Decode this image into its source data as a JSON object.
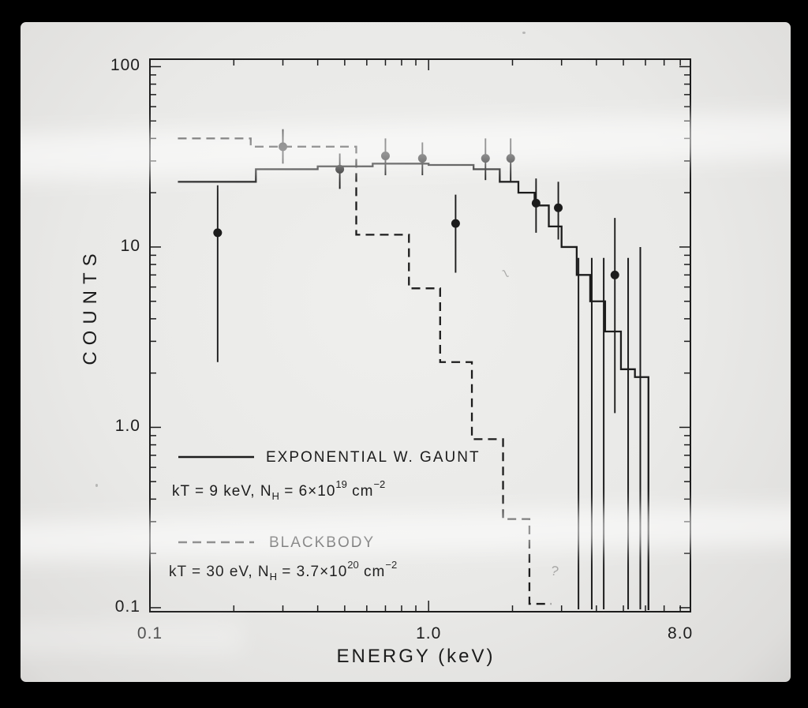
{
  "colors": {
    "ink": "#1c1c1c",
    "photo_bg": "#e9e9e7",
    "frame": "#000000"
  },
  "chart_data": {
    "type": "line",
    "subtype": "step-histogram-with-scatter",
    "title": "",
    "xlabel": "ENERGY (keV)",
    "ylabel": "COUNTS",
    "xscale": "log",
    "yscale": "log",
    "xlim": [
      0.1,
      8.7
    ],
    "ylim": [
      0.095,
      110
    ],
    "grid": false,
    "legend_position": "lower-left",
    "x_ticks_labeled": [
      {
        "value": 0.1,
        "label": "0.1"
      },
      {
        "value": 1.0,
        "label": "1.0"
      },
      {
        "value": 8.0,
        "label": "8.0"
      }
    ],
    "y_ticks_labeled": [
      {
        "value": 100,
        "label": "100"
      },
      {
        "value": 10,
        "label": "10"
      },
      {
        "value": 1.0,
        "label": "1.0"
      },
      {
        "value": 0.1,
        "label": "0.1"
      }
    ],
    "series": [
      {
        "name": "EXPONENTIAL W. GAUNT",
        "style": "solid",
        "kind": "step-histogram",
        "bins": [
          [
            0.126,
            0.24,
            23
          ],
          [
            0.24,
            0.4,
            27
          ],
          [
            0.4,
            0.63,
            28
          ],
          [
            0.63,
            1.0,
            29
          ],
          [
            1.0,
            1.45,
            28.5
          ],
          [
            1.45,
            1.8,
            27
          ],
          [
            1.8,
            2.1,
            23
          ],
          [
            2.1,
            2.4,
            20
          ],
          [
            2.4,
            2.7,
            17
          ],
          [
            2.7,
            3.0,
            13
          ],
          [
            3.0,
            3.4,
            10
          ],
          [
            3.4,
            3.8,
            7
          ],
          [
            3.8,
            4.3,
            5
          ],
          [
            4.3,
            4.9,
            3.4
          ],
          [
            4.9,
            5.5,
            2.1
          ],
          [
            5.5,
            6.15,
            1.9
          ]
        ],
        "end_drop": true
      },
      {
        "name": "BLACKBODY",
        "style": "dashed",
        "kind": "step-histogram",
        "bins": [
          [
            0.126,
            0.23,
            40
          ],
          [
            0.23,
            0.55,
            36
          ],
          [
            0.55,
            0.85,
            11.7
          ],
          [
            0.85,
            1.1,
            5.9
          ],
          [
            1.1,
            1.43,
            2.3
          ],
          [
            1.43,
            1.85,
            0.86
          ],
          [
            1.85,
            2.3,
            0.31
          ],
          [
            2.3,
            2.75,
            0.105
          ]
        ],
        "end_drop": false
      }
    ],
    "points": [
      {
        "x": 0.175,
        "y": 12,
        "ylo": 2.3,
        "yhi": 22
      },
      {
        "x": 0.3,
        "y": 36,
        "ylo": 29,
        "yhi": 45
      },
      {
        "x": 0.48,
        "y": 27,
        "ylo": 21,
        "yhi": 33
      },
      {
        "x": 0.7,
        "y": 32,
        "ylo": 25,
        "yhi": 40
      },
      {
        "x": 0.95,
        "y": 31,
        "ylo": 25,
        "yhi": 38
      },
      {
        "x": 1.25,
        "y": 13.5,
        "ylo": 7.2,
        "yhi": 19.5
      },
      {
        "x": 1.6,
        "y": 31,
        "ylo": 23.5,
        "yhi": 40
      },
      {
        "x": 1.97,
        "y": 31,
        "ylo": 23,
        "yhi": 40
      },
      {
        "x": 2.43,
        "y": 17.5,
        "ylo": 12,
        "yhi": 24
      },
      {
        "x": 2.92,
        "y": 16.5,
        "ylo": 11,
        "yhi": 23
      },
      {
        "x": 4.66,
        "y": 7,
        "ylo": 1.2,
        "yhi": 14.5
      }
    ],
    "upper_limit_lines": [
      {
        "x": 3.45,
        "top": 8.7
      },
      {
        "x": 3.85,
        "top": 8.7
      },
      {
        "x": 4.25,
        "top": 8.7
      },
      {
        "x": 5.2,
        "top": 8.7
      },
      {
        "x": 5.75,
        "top": 10
      }
    ]
  },
  "legend": {
    "entries": [
      {
        "label": "EXPONENTIAL W. GAUNT",
        "style": "solid",
        "formula": [
          [
            "kT = 9 keV,  N",
            "n"
          ],
          [
            "H",
            "sub"
          ],
          [
            " = 6×10",
            "n"
          ],
          [
            "19",
            "sup"
          ],
          [
            " cm",
            "n"
          ],
          [
            "−2",
            "sup"
          ]
        ]
      },
      {
        "label": "BLACKBODY",
        "style": "dashed",
        "formula": [
          [
            "kT = 30 eV,  N",
            "n"
          ],
          [
            "H",
            "sub"
          ],
          [
            " = 3.7×10",
            "n"
          ],
          [
            "20",
            "sup"
          ],
          [
            " cm",
            "n"
          ],
          [
            "−2",
            "sup"
          ]
        ]
      }
    ]
  }
}
